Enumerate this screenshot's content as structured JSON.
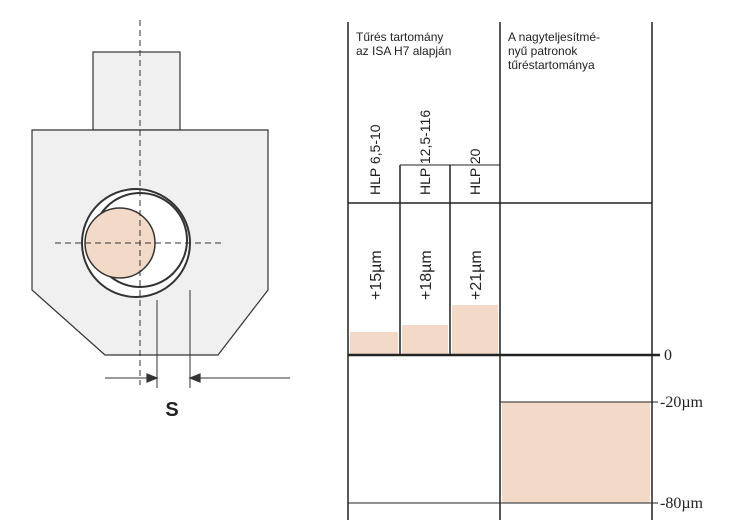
{
  "header": {
    "left_title": [
      "Tűrés  tartomány",
      "az ISA  H7 alapján"
    ],
    "right_title": [
      "A nagyteljesítmé-",
      "nyű patronok",
      "tűréstartománya"
    ]
  },
  "columns": [
    "HLP 6,5-10",
    "HLP 12,5-116",
    "HLP 20"
  ],
  "tolerances": [
    "+15µm",
    "+18µm",
    "+21µm"
  ],
  "scale_labels": [
    "0",
    "-20µm",
    "-80µm"
  ],
  "dimension_label": "S"
}
